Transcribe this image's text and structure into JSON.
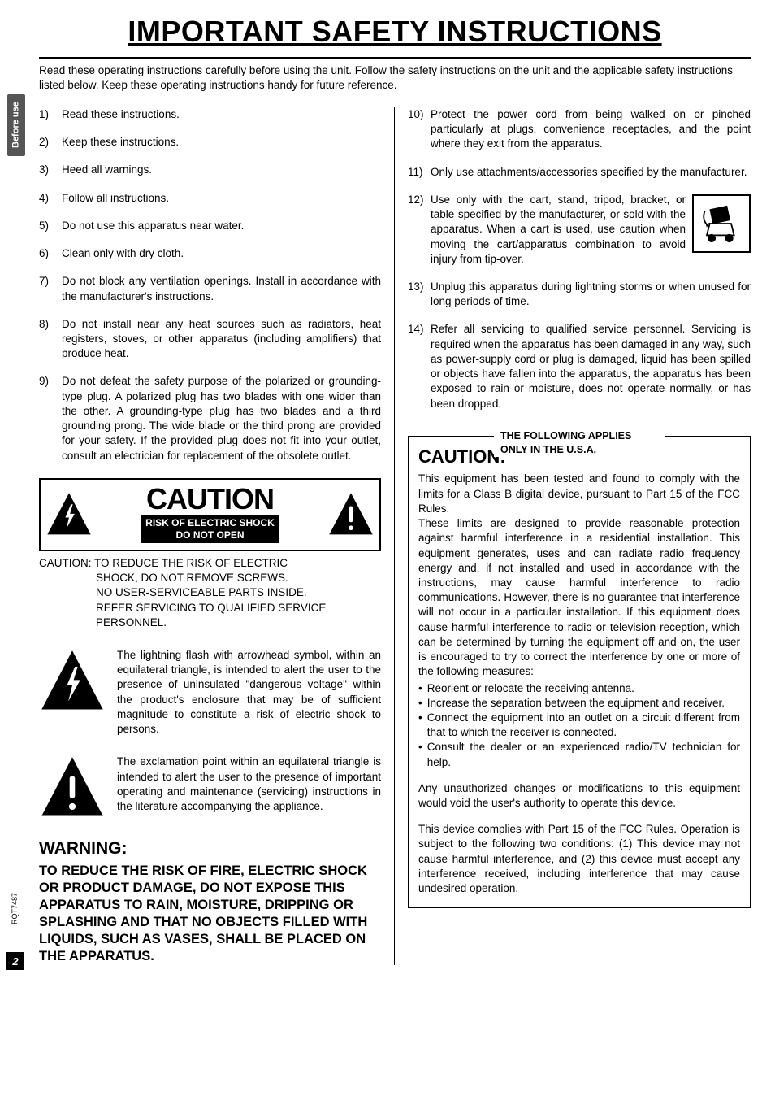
{
  "title": "IMPORTANT SAFETY INSTRUCTIONS",
  "intro": "Read these operating instructions carefully before using the unit. Follow the safety instructions on the unit and the applicable safety instructions listed below. Keep these operating instructions handy for future reference.",
  "side_tab": "Before use",
  "doc_code": "RQT7487",
  "page_number": "2",
  "left_items": [
    {
      "n": "1)",
      "t": "Read these instructions."
    },
    {
      "n": "2)",
      "t": "Keep these instructions."
    },
    {
      "n": "3)",
      "t": "Heed all warnings."
    },
    {
      "n": "4)",
      "t": "Follow all instructions."
    },
    {
      "n": "5)",
      "t": "Do not use this apparatus near water."
    },
    {
      "n": "6)",
      "t": "Clean only with dry cloth."
    },
    {
      "n": "7)",
      "t": "Do not block any ventilation openings. Install in accordance with the manufacturer's instructions."
    },
    {
      "n": "8)",
      "t": "Do not install near any heat sources such as radiators, heat registers, stoves, or other apparatus (including amplifiers) that produce heat."
    },
    {
      "n": "9)",
      "t": "Do not defeat the safety purpose of the polarized or grounding-type plug. A polarized plug has two blades with one wider than the other. A grounding-type plug has two blades and a third grounding prong. The wide blade or the third prong are provided for your safety. If the provided plug does not fit into your outlet, consult an electrician for replacement of the obsolete outlet."
    }
  ],
  "right_items_a": [
    {
      "n": "10)",
      "t": "Protect the power cord from being walked on or pinched particularly at plugs, convenience receptacles, and the point where they exit from the apparatus."
    },
    {
      "n": "11)",
      "t": "Only use attachments/accessories specified by the manufacturer."
    }
  ],
  "item12": {
    "n": "12)",
    "t": "Use only with the cart, stand, tripod, bracket, or table specified by the manufacturer, or sold with the apparatus. When a cart is used, use caution when moving the cart/apparatus combination to avoid injury from tip-over."
  },
  "right_items_b": [
    {
      "n": "13)",
      "t": "Unplug this apparatus during lightning storms or when unused for long periods of time."
    },
    {
      "n": "14)",
      "t": "Refer all servicing to qualified service personnel. Servicing is required when the apparatus has been damaged in any way, such as power-supply cord or plug is damaged, liquid has been spilled or objects have fallen into the apparatus, the apparatus has been exposed to rain or moisture, does not operate normally, or has been dropped."
    }
  ],
  "caution_plate": {
    "word": "CAUTION",
    "sub1": "RISK OF ELECTRIC SHOCK",
    "sub2": "DO NOT OPEN"
  },
  "caution_text": {
    "l1": "CAUTION: TO REDUCE THE RISK OF ELECTRIC",
    "l2": "SHOCK, DO NOT REMOVE SCREWS.",
    "l3": "NO USER-SERVICEABLE PARTS INSIDE.",
    "l4": "REFER SERVICING TO QUALIFIED SERVICE PERSONNEL."
  },
  "bolt_desc": "The lightning flash with arrowhead symbol, within an equilateral triangle, is intended to alert the user to the presence of uninsulated \"dangerous voltage\" within the product's enclosure that may be of sufficient magnitude to constitute a risk of electric shock to persons.",
  "excl_desc": "The exclamation point within an equilateral triangle is intended to alert the user to the presence of important operating and maintenance (servicing) instructions in the literature accompanying the appliance.",
  "warning": {
    "head": "WARNING:",
    "body": "TO REDUCE THE RISK OF FIRE, ELECTRIC SHOCK OR PRODUCT DAMAGE, DO NOT EXPOSE THIS APPARATUS TO RAIN, MOISTURE, DRIPPING OR SPLASHING AND THAT NO OBJECTS FILLED WITH LIQUIDS, SUCH AS VASES, SHALL BE PLACED ON THE APPARATUS."
  },
  "usa": {
    "legend": "THE FOLLOWING APPLIES ONLY IN THE U.S.A.",
    "head": "CAUTION:",
    "p1": "This equipment has been tested and found to comply with the limits for a Class B digital device, pursuant to Part 15 of the FCC Rules.",
    "p2": "These limits are designed to provide reasonable protection against harmful interference in a residential installation. This equipment generates, uses and can radiate radio frequency energy and, if not installed and used in accordance with the instructions, may cause harmful interference to radio communications. However, there is no guarantee that interference will not occur in a particular installation. If this equipment does cause harmful interference to radio or television reception, which can be determined by turning the equipment off and on, the user is encouraged to try to correct the interference by one or more of the following measures:",
    "bullets": [
      "Reorient or relocate the receiving antenna.",
      "Increase the separation between the equipment and receiver.",
      "Connect the equipment into an outlet on a circuit different from that to which the receiver is connected.",
      "Consult the dealer or an experienced radio/TV technician for help."
    ],
    "p3": "Any unauthorized changes or modifications to this equipment would void the user's authority to operate this device.",
    "p4": "This device complies with Part 15 of the FCC Rules. Operation is subject to the following two conditions: (1) This device may not cause harmful interference, and (2) this device must accept any interference received, including interference that may cause undesired operation."
  }
}
